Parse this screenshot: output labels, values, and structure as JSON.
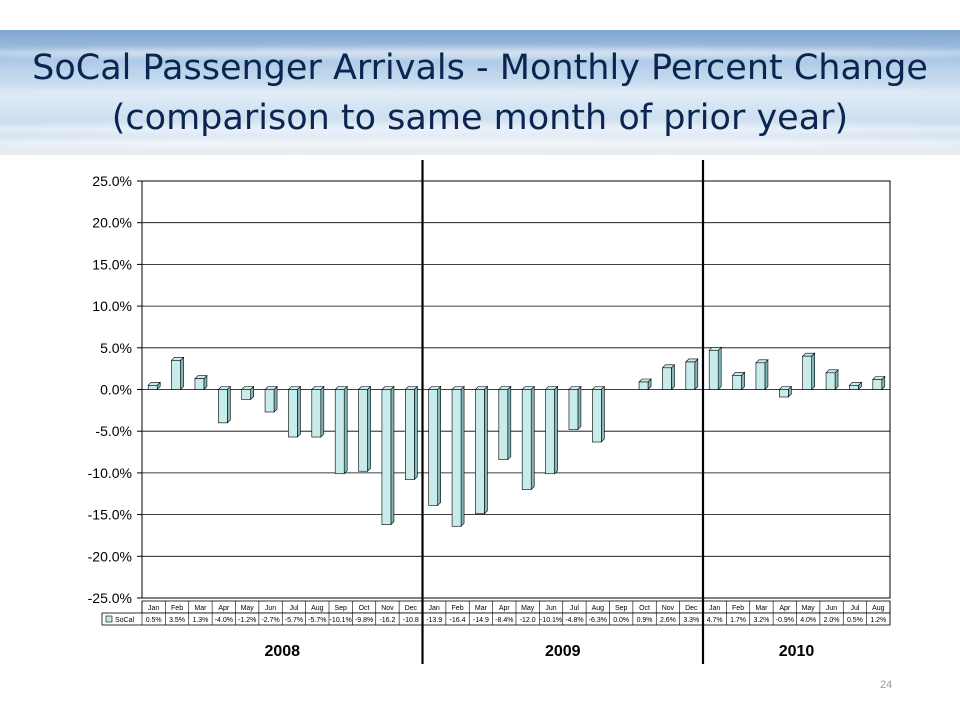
{
  "slide": {
    "title_line1": "SoCal Passenger Arrivals - Monthly Percent Change",
    "title_line2": "(comparison to same month of prior year)",
    "page_number": "24"
  },
  "colors": {
    "bar_fill": "#c8ebeb",
    "bar_side": "#7fb8b8",
    "title": "#0b2450"
  },
  "chart_data": {
    "type": "bar",
    "title": "",
    "xlabel": "",
    "ylabel": "",
    "ylim": [
      -25,
      25
    ],
    "y_ticks": [
      "25.0%",
      "20.0%",
      "15.0%",
      "10.0%",
      "5.0%",
      "0.0%",
      "-5.0%",
      "-10.0%",
      "-15.0%",
      "-20.0%",
      "-25.0%"
    ],
    "y_tick_values": [
      25,
      20,
      15,
      10,
      5,
      0,
      -5,
      -10,
      -15,
      -20,
      -25
    ],
    "grid": true,
    "legend": "data-table-row",
    "categories": [
      "Jan",
      "Feb",
      "Mar",
      "Apr",
      "May",
      "Jun",
      "Jul",
      "Aug",
      "Sep",
      "Oct",
      "Nov",
      "Dec",
      "Jan",
      "Feb",
      "Mar",
      "Apr",
      "May",
      "Jun",
      "Jul",
      "Aug",
      "Sep",
      "Oct",
      "Nov",
      "Dec",
      "Jan",
      "Feb",
      "Mar",
      "Apr",
      "May",
      "Jun",
      "Jul",
      "Aug"
    ],
    "series": [
      {
        "name": "SoCal",
        "values": [
          0.5,
          3.5,
          1.3,
          -4.0,
          -1.2,
          -2.7,
          -5.7,
          -5.7,
          -10.1,
          -9.8,
          -16.2,
          -10.8,
          -13.9,
          -16.4,
          -14.9,
          -8.4,
          -12.0,
          -10.1,
          -4.8,
          -6.3,
          0.0,
          0.9,
          2.6,
          3.3,
          4.7,
          1.7,
          3.2,
          -0.9,
          4.0,
          2.0,
          0.5,
          1.2
        ],
        "labels": [
          "0.5%",
          "3.5%",
          "1.3%",
          "-4.0%",
          "-1.2%",
          "-2.7%",
          "-5.7%",
          "-5.7%",
          "-10.1%",
          "-9.8%",
          "-16.2",
          "-10.8",
          "-13.9",
          "-16.4",
          "-14.9",
          "-8.4%",
          "-12.0",
          "-10.1%",
          "-4.8%",
          "-6.3%",
          "0.0%",
          "0.9%",
          "2.6%",
          "3.3%",
          "4.7%",
          "1.7%",
          "3.2%",
          "-0.9%",
          "4.0%",
          "2.0%",
          "0.5%",
          "1.2%"
        ]
      }
    ],
    "year_labels": [
      {
        "text": "2008",
        "start_index": 0,
        "end_index": 11
      },
      {
        "text": "2009",
        "start_index": 12,
        "end_index": 23
      },
      {
        "text": "2010",
        "start_index": 24,
        "end_index": 31
      }
    ]
  }
}
